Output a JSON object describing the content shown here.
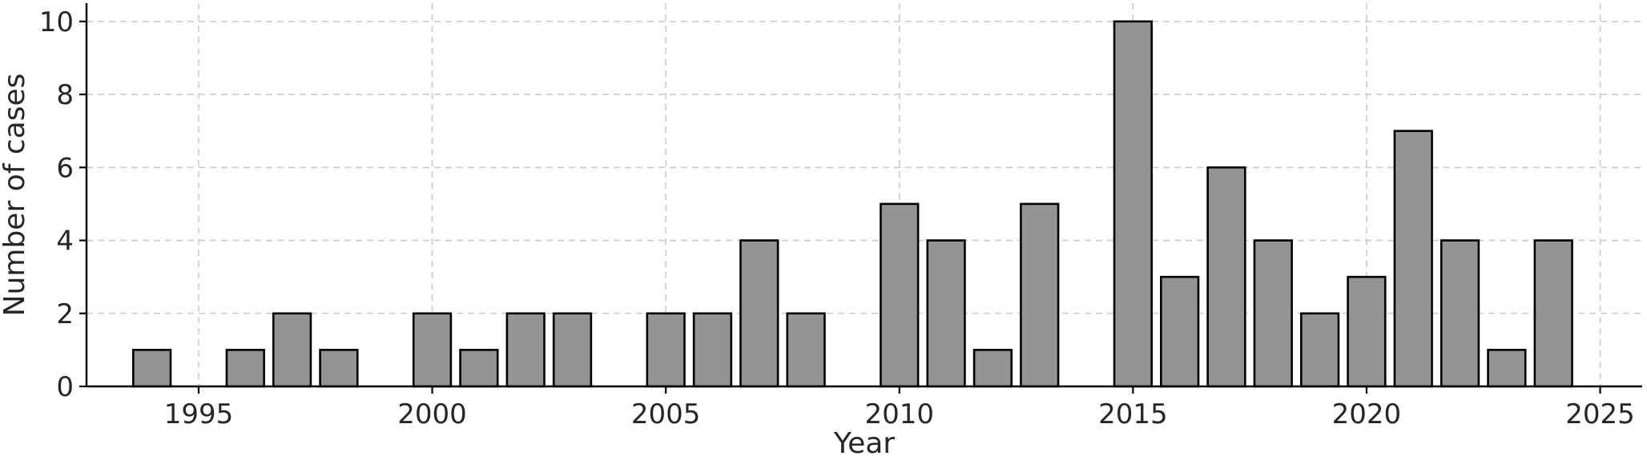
{
  "chart_data": {
    "type": "bar",
    "xlabel": "Year",
    "ylabel": "Number of cases",
    "x": [
      1994,
      1996,
      1997,
      1998,
      2000,
      2001,
      2002,
      2003,
      2005,
      2006,
      2007,
      2008,
      2010,
      2011,
      2012,
      2013,
      2015,
      2016,
      2017,
      2018,
      2019,
      2020,
      2021,
      2022,
      2023,
      2024
    ],
    "values": [
      1,
      1,
      2,
      1,
      2,
      1,
      2,
      2,
      2,
      2,
      4,
      2,
      5,
      4,
      1,
      5,
      10,
      3,
      6,
      4,
      2,
      3,
      7,
      4,
      1,
      4
    ],
    "xlim": [
      1992.6,
      2025.9
    ],
    "ylim": [
      0,
      10.5
    ],
    "xticks": [
      1995,
      2000,
      2005,
      2010,
      2015,
      2020,
      2025
    ],
    "yticks": [
      0,
      2,
      4,
      6,
      8,
      10
    ],
    "grid": true,
    "bar_color": "#949494",
    "edge_color": "#000000"
  }
}
